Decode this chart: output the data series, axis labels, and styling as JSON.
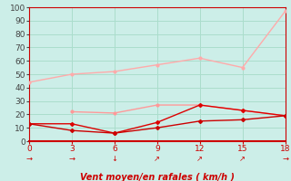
{
  "x": [
    0,
    3,
    6,
    9,
    12,
    15,
    18
  ],
  "line1": [
    44,
    50,
    52,
    57,
    62,
    55,
    97
  ],
  "line2": [
    null,
    22,
    21,
    27,
    27,
    23,
    19
  ],
  "line3": [
    13,
    13,
    6,
    14,
    27,
    23,
    19
  ],
  "line4": [
    13,
    8,
    6,
    10,
    15,
    16,
    19
  ],
  "line1_color": "#ffaaaa",
  "line2_color": "#ff9999",
  "line3_color": "#dd0000",
  "line4_color": "#cc0000",
  "bg_color": "#cceee8",
  "grid_color": "#aaddcc",
  "tick_color": "#cc0000",
  "xlabel": "Vent moyen/en rafales ( km/h )",
  "xlabel_color": "#cc0000",
  "xlim": [
    0,
    18
  ],
  "ylim": [
    0,
    100
  ],
  "xticks": [
    0,
    3,
    6,
    9,
    12,
    15,
    18
  ],
  "yticks": [
    0,
    10,
    20,
    30,
    40,
    50,
    60,
    70,
    80,
    90,
    100
  ],
  "wind_arrows_x": [
    0,
    3,
    6,
    9,
    12,
    15,
    18
  ],
  "wind_arrows": [
    "→",
    "→",
    "↓",
    "↗",
    "↗",
    "↗",
    "→"
  ]
}
